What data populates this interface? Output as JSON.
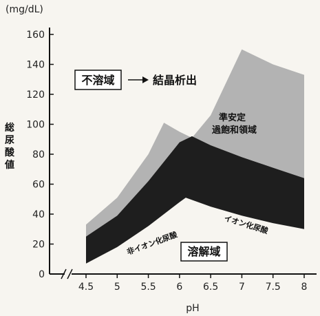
{
  "chart_data": {
    "type": "area",
    "xlabel": "pH",
    "ylabel": "総尿酸値",
    "y_unit": "(mg/dL)",
    "xlim": [
      4.5,
      8
    ],
    "ylim": [
      0,
      160
    ],
    "x_ticks": [
      "4.5",
      "5",
      "5.5",
      "6",
      "6.5",
      "7",
      "7.5",
      "8"
    ],
    "y_ticks": [
      "0",
      "20",
      "40",
      "60",
      "80",
      "100",
      "120",
      "140",
      "160"
    ],
    "axis_break": true,
    "grid": false,
    "series": [
      {
        "name": "非イオン化尿酸",
        "color": "#1a1a1a",
        "points": [
          [
            4.5,
            7
          ],
          [
            5.0,
            18
          ],
          [
            5.5,
            32
          ],
          [
            6.0,
            48
          ],
          [
            6.1,
            51
          ],
          [
            6.2,
            49
          ]
        ]
      },
      {
        "name": "イオン化尿酸",
        "color": "#1a1a1a",
        "points": [
          [
            6.1,
            51
          ],
          [
            6.5,
            45
          ],
          [
            7.0,
            39
          ],
          [
            7.5,
            34
          ],
          [
            8.0,
            30
          ]
        ]
      },
      {
        "name": "solubility_limit",
        "points": [
          [
            4.5,
            25
          ],
          [
            5.0,
            39
          ],
          [
            5.5,
            62
          ],
          [
            6.0,
            88
          ],
          [
            6.2,
            92
          ],
          [
            6.5,
            86
          ],
          [
            7.0,
            78
          ],
          [
            7.5,
            71
          ],
          [
            8.0,
            64
          ]
        ]
      },
      {
        "name": "supersaturation_limit",
        "points": [
          [
            4.5,
            33
          ],
          [
            5.0,
            51
          ],
          [
            5.5,
            80
          ],
          [
            5.75,
            101
          ],
          [
            6.0,
            95
          ],
          [
            6.2,
            91
          ],
          [
            6.5,
            106
          ],
          [
            7.0,
            150
          ],
          [
            7.5,
            140
          ],
          [
            8.0,
            133
          ]
        ]
      }
    ]
  },
  "labels": {
    "insoluble_box": "不溶域",
    "arrow": "→",
    "crystal": "結晶析出",
    "metastable_line1": "準安定",
    "metastable_line2": "過飽和領域",
    "soluble_box": "溶解域",
    "nonionized": "非イオン化尿酸",
    "ionized": "イオン化尿酸"
  },
  "colors": {
    "supersat": "#b3b3b3",
    "solution_band": "#1e1e1e",
    "background": "#f7f5f0"
  }
}
